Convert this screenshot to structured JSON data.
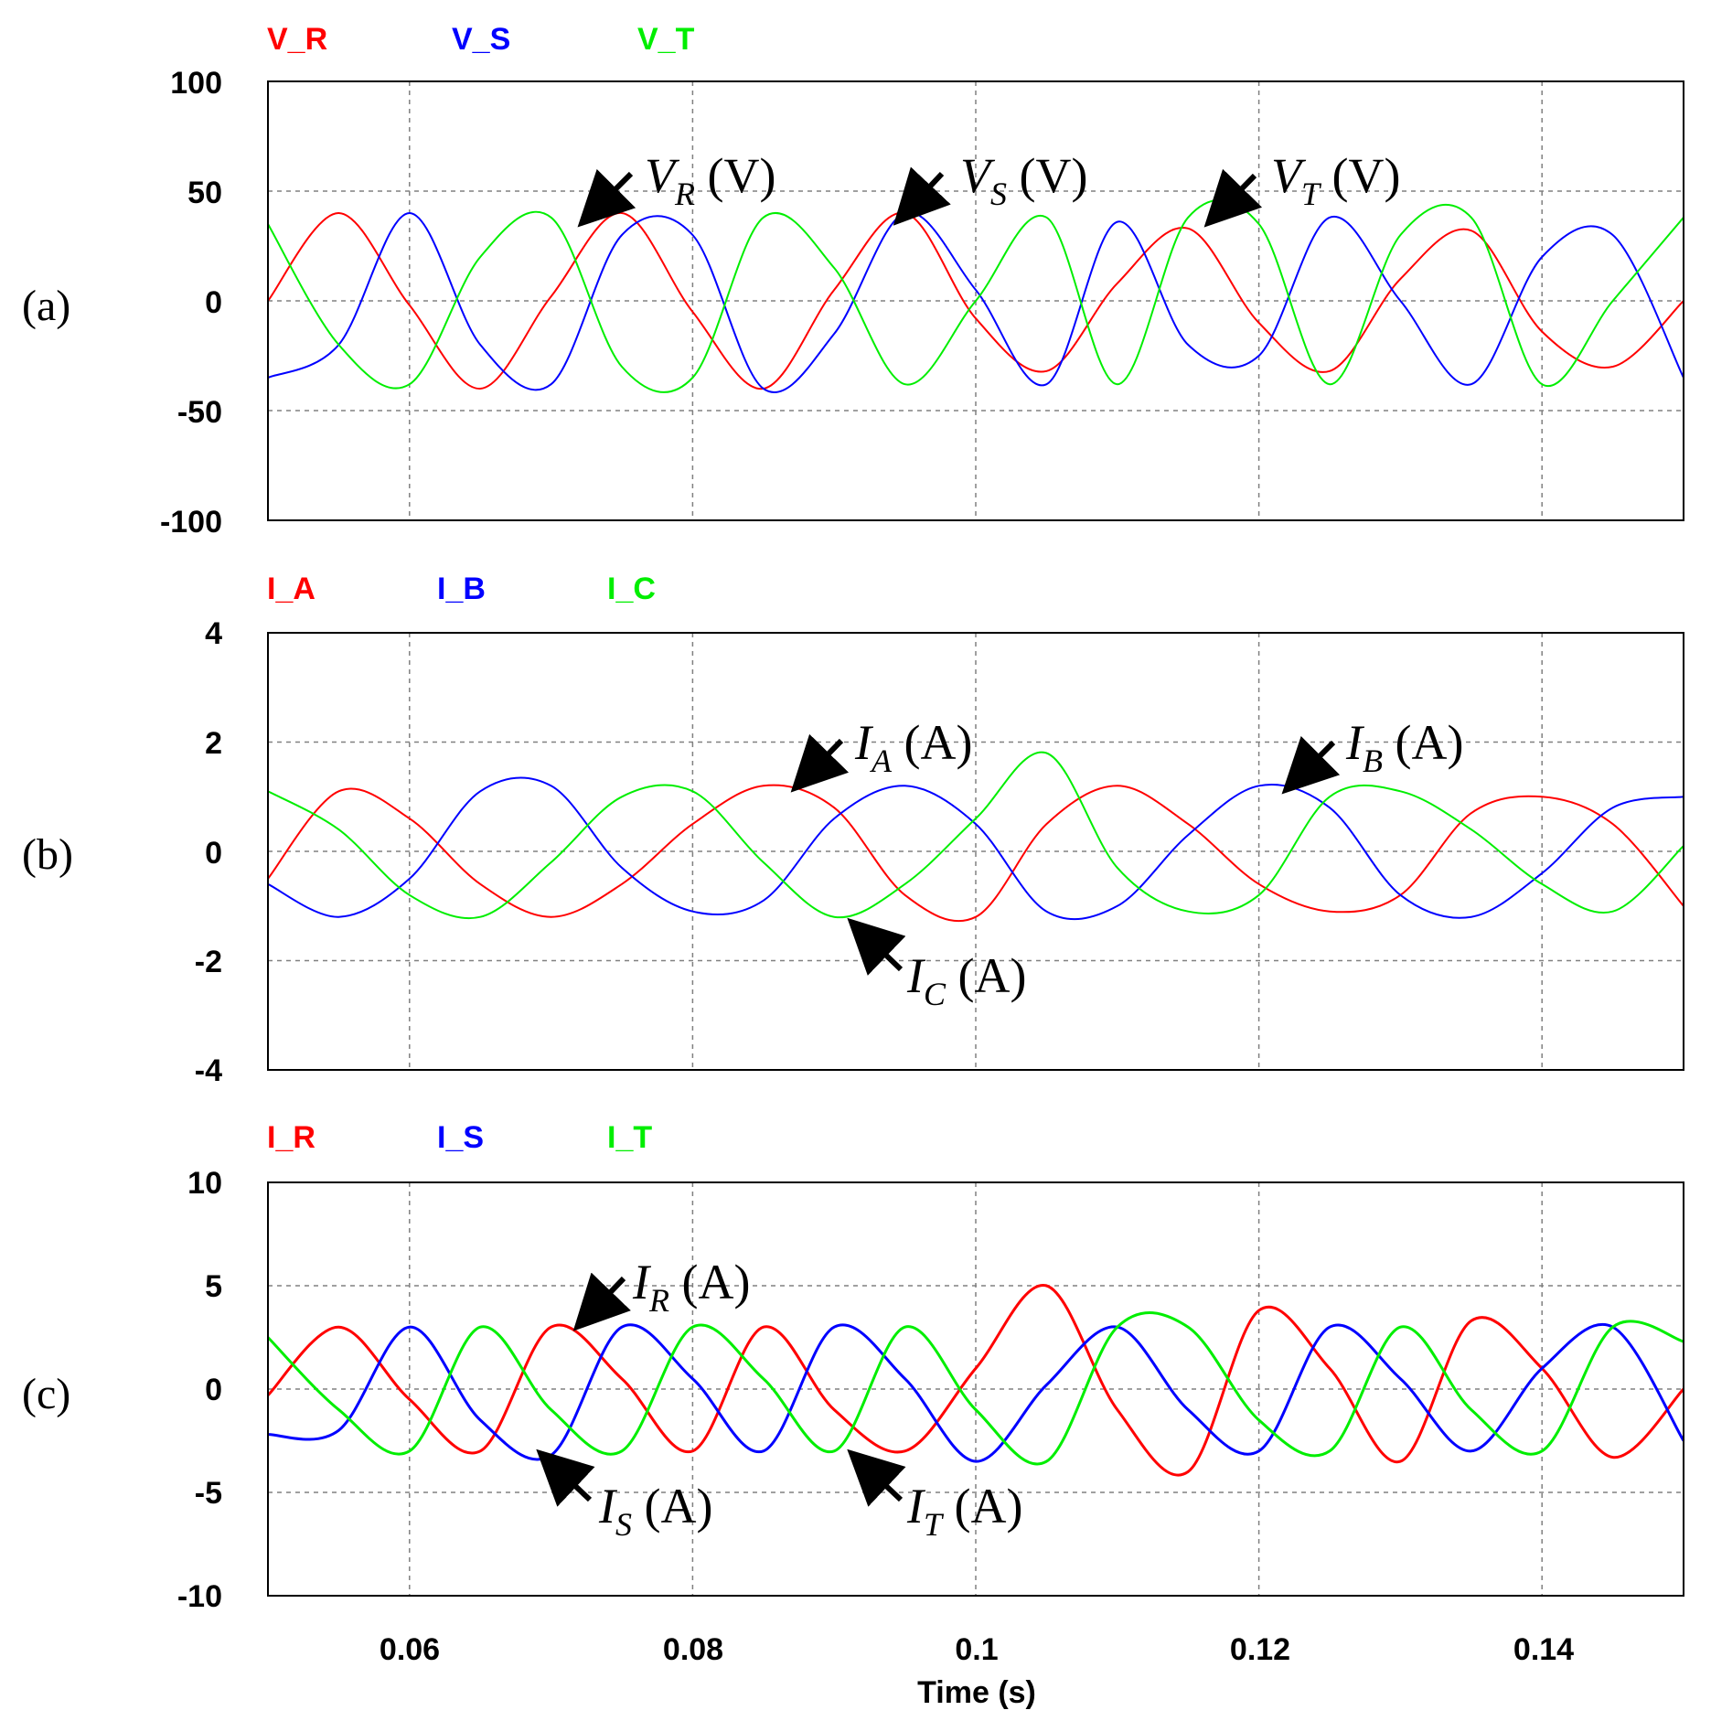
{
  "colors": {
    "red": "#ff0000",
    "blue": "#0000ff",
    "green": "#00ee00"
  },
  "xlabel": "Time (s)",
  "x_ticks": [
    "0.06",
    "0.08",
    "0.1",
    "0.12",
    "0.14"
  ],
  "panels": [
    {
      "label": "(a)",
      "legend": [
        "V_R",
        "V_S",
        "V_T"
      ],
      "y_ticks": [
        "100",
        "50",
        "0",
        "-50",
        "-100"
      ],
      "annotations": [
        {
          "main": "V",
          "sub": "R",
          "unit": "(V)"
        },
        {
          "main": "V",
          "sub": "S",
          "unit": "(V)"
        },
        {
          "main": "V",
          "sub": "T",
          "unit": "(V)"
        }
      ]
    },
    {
      "label": "(b)",
      "legend": [
        "I_A",
        "I_B",
        "I_C"
      ],
      "y_ticks": [
        "4",
        "2",
        "0",
        "-2",
        "-4"
      ],
      "annotations": [
        {
          "main": "I",
          "sub": "A",
          "unit": "(A)"
        },
        {
          "main": "I",
          "sub": "B",
          "unit": "(A)"
        },
        {
          "main": "I",
          "sub": "C",
          "unit": "(A)"
        }
      ]
    },
    {
      "label": "(c)",
      "legend": [
        "I_R",
        "I_S",
        "I_T"
      ],
      "y_ticks": [
        "10",
        "5",
        "0",
        "-5",
        "-10"
      ],
      "annotations": [
        {
          "main": "I",
          "sub": "R",
          "unit": "(A)"
        },
        {
          "main": "I",
          "sub": "S",
          "unit": "(A)"
        },
        {
          "main": "I",
          "sub": "T",
          "unit": "(A)"
        }
      ]
    }
  ],
  "chart_data": [
    {
      "type": "line",
      "xlabel": "",
      "ylabel": "",
      "xlim": [
        0.05,
        0.15
      ],
      "ylim": [
        -100,
        100
      ],
      "xticks": [
        0.06,
        0.08,
        0.1,
        0.12,
        0.14
      ],
      "yticks": [
        100,
        50,
        0,
        -50,
        -100
      ],
      "grid": true,
      "legend_position": "top-left",
      "series": [
        {
          "name": "V_R",
          "color": "#ff0000",
          "x": [
            0.05,
            0.055,
            0.06,
            0.065,
            0.07,
            0.075,
            0.08,
            0.085,
            0.09,
            0.095,
            0.1,
            0.105,
            0.11,
            0.115,
            0.12,
            0.125,
            0.13,
            0.135,
            0.14,
            0.145,
            0.15
          ],
          "y": [
            0,
            40,
            -2,
            -40,
            2,
            40,
            -5,
            -40,
            5,
            40,
            -8,
            -32,
            8,
            33,
            -10,
            -32,
            10,
            32,
            -14,
            -30,
            0
          ]
        },
        {
          "name": "V_S",
          "color": "#0000ff",
          "x": [
            0.05,
            0.055,
            0.06,
            0.065,
            0.07,
            0.075,
            0.08,
            0.085,
            0.09,
            0.095,
            0.1,
            0.105,
            0.11,
            0.115,
            0.12,
            0.125,
            0.13,
            0.135,
            0.14,
            0.145,
            0.15
          ],
          "y": [
            -35,
            -20,
            40,
            -20,
            -38,
            30,
            30,
            -40,
            -15,
            40,
            5,
            -38,
            36,
            -20,
            -25,
            38,
            0,
            -38,
            20,
            30,
            -35
          ]
        },
        {
          "name": "V_T",
          "color": "#00ee00",
          "x": [
            0.05,
            0.055,
            0.06,
            0.065,
            0.07,
            0.075,
            0.08,
            0.085,
            0.09,
            0.095,
            0.1,
            0.105,
            0.11,
            0.115,
            0.12,
            0.125,
            0.13,
            0.135,
            0.14,
            0.145,
            0.15
          ],
          "y": [
            35,
            -20,
            -38,
            20,
            38,
            -30,
            -35,
            38,
            15,
            -38,
            0,
            38,
            -38,
            38,
            35,
            -38,
            30,
            38,
            -38,
            0,
            38
          ]
        }
      ]
    },
    {
      "type": "line",
      "xlabel": "",
      "ylabel": "",
      "xlim": [
        0.05,
        0.15
      ],
      "ylim": [
        -4,
        4
      ],
      "xticks": [
        0.06,
        0.08,
        0.1,
        0.12,
        0.14
      ],
      "yticks": [
        4,
        2,
        0,
        -2,
        -4
      ],
      "grid": true,
      "legend_position": "top-left",
      "series": [
        {
          "name": "I_A",
          "color": "#ff0000",
          "x": [
            0.05,
            0.055,
            0.06,
            0.065,
            0.07,
            0.075,
            0.08,
            0.085,
            0.09,
            0.095,
            0.1,
            0.105,
            0.11,
            0.115,
            0.12,
            0.125,
            0.13,
            0.135,
            0.14,
            0.145,
            0.15
          ],
          "y": [
            -0.5,
            1.1,
            0.6,
            -0.6,
            -1.2,
            -0.6,
            0.5,
            1.2,
            0.8,
            -0.8,
            -1.2,
            0.5,
            1.2,
            0.5,
            -0.6,
            -1.1,
            -0.8,
            0.7,
            1.0,
            0.5,
            -1.0
          ]
        },
        {
          "name": "I_B",
          "color": "#0000ff",
          "x": [
            0.05,
            0.055,
            0.06,
            0.065,
            0.07,
            0.075,
            0.08,
            0.085,
            0.09,
            0.095,
            0.1,
            0.105,
            0.11,
            0.115,
            0.12,
            0.125,
            0.13,
            0.135,
            0.14,
            0.145,
            0.15
          ],
          "y": [
            -0.6,
            -1.2,
            -0.5,
            1.1,
            1.2,
            -0.3,
            -1.1,
            -0.9,
            0.6,
            1.2,
            0.5,
            -1.1,
            -1.0,
            0.3,
            1.2,
            0.8,
            -0.8,
            -1.2,
            -0.4,
            0.8,
            1.0
          ]
        },
        {
          "name": "I_C",
          "color": "#00ee00",
          "x": [
            0.05,
            0.055,
            0.06,
            0.065,
            0.07,
            0.075,
            0.08,
            0.085,
            0.09,
            0.095,
            0.1,
            0.105,
            0.11,
            0.115,
            0.12,
            0.125,
            0.13,
            0.135,
            0.14,
            0.145,
            0.15
          ],
          "y": [
            1.1,
            0.4,
            -0.8,
            -1.2,
            -0.2,
            1.0,
            1.1,
            -0.2,
            -1.2,
            -0.6,
            0.6,
            1.8,
            -0.3,
            -1.1,
            -0.8,
            1.0,
            1.1,
            0.4,
            -0.6,
            -1.1,
            0.1
          ]
        }
      ]
    },
    {
      "type": "line",
      "xlabel": "Time (s)",
      "ylabel": "",
      "xlim": [
        0.05,
        0.15
      ],
      "ylim": [
        -10,
        10
      ],
      "xticks": [
        0.06,
        0.08,
        0.1,
        0.12,
        0.14
      ],
      "yticks": [
        10,
        5,
        0,
        -5,
        -10
      ],
      "grid": true,
      "legend_position": "top-left",
      "series": [
        {
          "name": "I_R",
          "color": "#ff0000",
          "x": [
            0.05,
            0.055,
            0.06,
            0.065,
            0.07,
            0.075,
            0.08,
            0.085,
            0.09,
            0.095,
            0.1,
            0.105,
            0.11,
            0.115,
            0.12,
            0.125,
            0.13,
            0.135,
            0.14,
            0.145,
            0.15
          ],
          "y": [
            -0.3,
            3.0,
            -0.5,
            -3.0,
            3.0,
            0.5,
            -3.0,
            3.0,
            -1.0,
            -3.0,
            1.0,
            5.0,
            -1.0,
            -4.0,
            3.8,
            1.0,
            -3.5,
            3.3,
            1.0,
            -3.3,
            0
          ]
        },
        {
          "name": "I_S",
          "color": "#0000ff",
          "x": [
            0.05,
            0.055,
            0.06,
            0.065,
            0.07,
            0.075,
            0.08,
            0.085,
            0.09,
            0.095,
            0.1,
            0.105,
            0.11,
            0.115,
            0.12,
            0.125,
            0.13,
            0.135,
            0.14,
            0.145,
            0.15
          ],
          "y": [
            -2.2,
            -2.0,
            3.0,
            -1.5,
            -3.2,
            3.0,
            0.5,
            -3.0,
            3.0,
            0.5,
            -3.5,
            0.2,
            3.0,
            -1.0,
            -3.0,
            3.0,
            0.5,
            -3.0,
            1.0,
            3.0,
            -2.5
          ]
        },
        {
          "name": "I_T",
          "color": "#00ee00",
          "x": [
            0.05,
            0.055,
            0.06,
            0.065,
            0.07,
            0.075,
            0.08,
            0.085,
            0.09,
            0.095,
            0.1,
            0.105,
            0.11,
            0.115,
            0.12,
            0.125,
            0.13,
            0.135,
            0.14,
            0.145,
            0.15
          ],
          "y": [
            2.5,
            -1.0,
            -3.0,
            3.0,
            -1.0,
            -3.0,
            3.0,
            0.5,
            -3.0,
            3.0,
            -1.0,
            -3.5,
            3.0,
            3.0,
            -1.5,
            -3.0,
            3.0,
            -1.0,
            -3.0,
            3.0,
            2.3
          ]
        }
      ]
    }
  ]
}
